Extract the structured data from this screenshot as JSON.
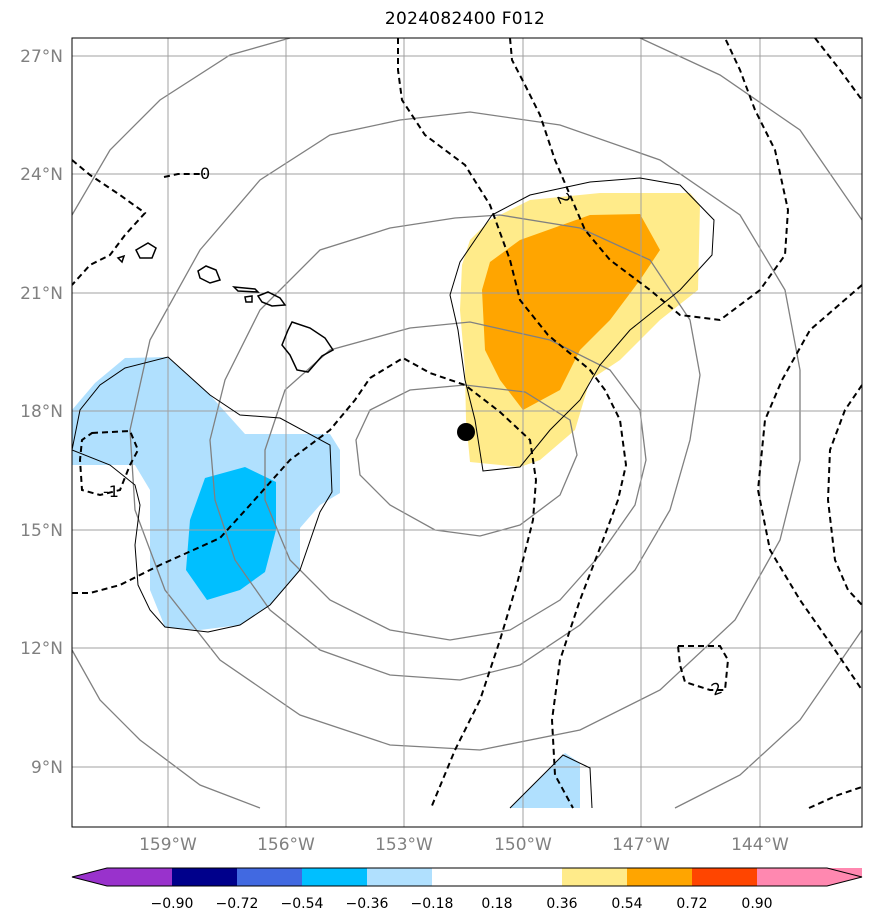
{
  "title": "2024082400 F012",
  "map": {
    "lat_labels": [
      "27°N",
      "24°N",
      "21°N",
      "18°N",
      "15°N",
      "12°N",
      "9°N"
    ],
    "lon_labels": [
      "159°W",
      "156°W",
      "153°W",
      "150°W",
      "147°W",
      "144°W"
    ],
    "contour_labels": [
      "0",
      "-1",
      "2",
      "2"
    ],
    "storm_center_marker": "black-dot"
  },
  "colorbar": {
    "tick_labels": [
      "−0.90",
      "−0.72",
      "−0.54",
      "−0.36",
      "−0.18",
      "0.18",
      "0.36",
      "0.54",
      "0.72",
      "0.90"
    ],
    "colors": [
      "#9932cc",
      "#00008b",
      "#4169e1",
      "#00bfff",
      "#b0e0fe",
      "#ffffff",
      "#ffeb8a",
      "#ffa500",
      "#ff4500",
      "#b22222",
      "#ff88b0"
    ]
  },
  "fill_colors": {
    "light_blue": "#b0e0fe",
    "deep_sky_blue": "#00bfff",
    "light_yellow": "#ffeb8a",
    "orange": "#ffa500"
  }
}
